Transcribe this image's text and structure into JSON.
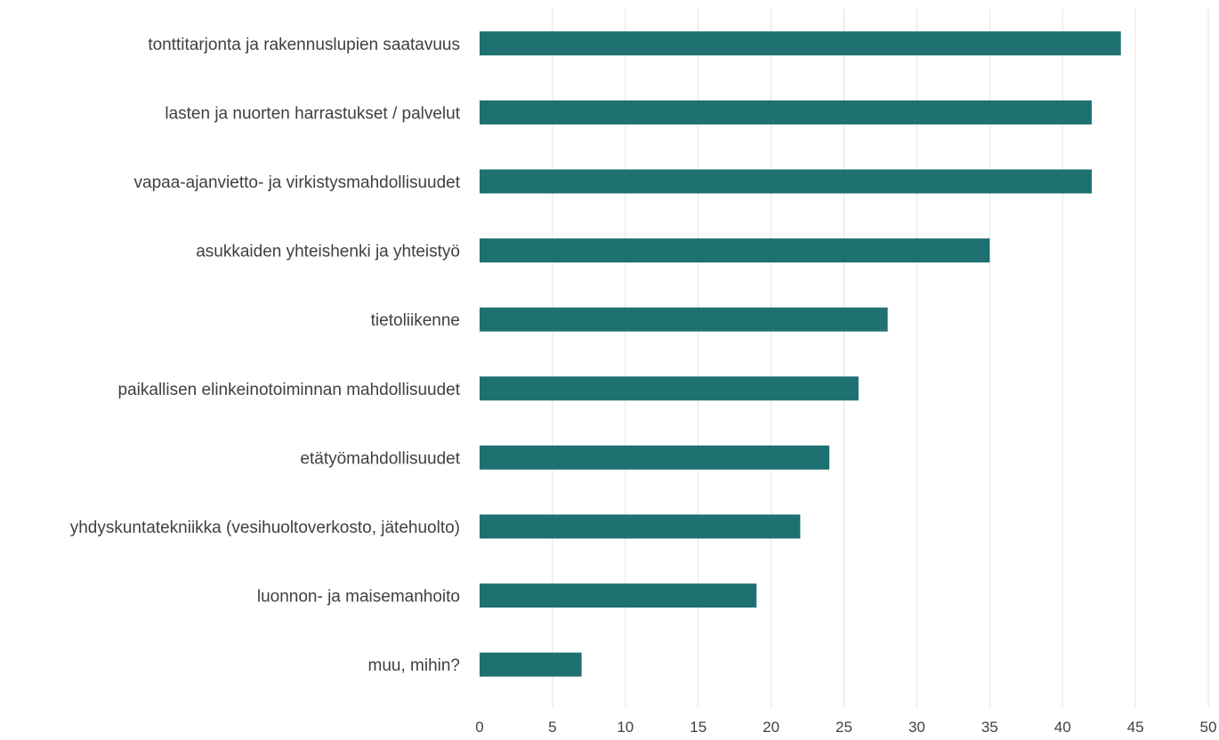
{
  "chart_data": {
    "type": "bar",
    "orientation": "horizontal",
    "categories": [
      "tonttitarjonta ja rakennuslupien saatavuus",
      "lasten ja nuorten harrastukset / palvelut",
      "vapaa-ajanvietto- ja virkistysmahdollisuudet",
      "asukkaiden yhteishenki ja yhteistyö",
      "tietoliikenne",
      "paikallisen elinkeinotoiminnan mahdollisuudet",
      "etätyömahdollisuudet",
      "yhdyskuntatekniikka (vesihuoltoverkosto, jätehuolto)",
      "luonnon- ja maisemanhoito",
      "muu, mihin?"
    ],
    "values": [
      44,
      42,
      42,
      35,
      28,
      26,
      24,
      22,
      19,
      7
    ],
    "xlim": [
      0,
      50
    ],
    "xticks": [
      "0",
      "5",
      "10",
      "15",
      "20",
      "25",
      "30",
      "35",
      "40",
      "45",
      "50"
    ],
    "grid": "vertical",
    "legend": "none",
    "bar_color": "#1f7070"
  }
}
